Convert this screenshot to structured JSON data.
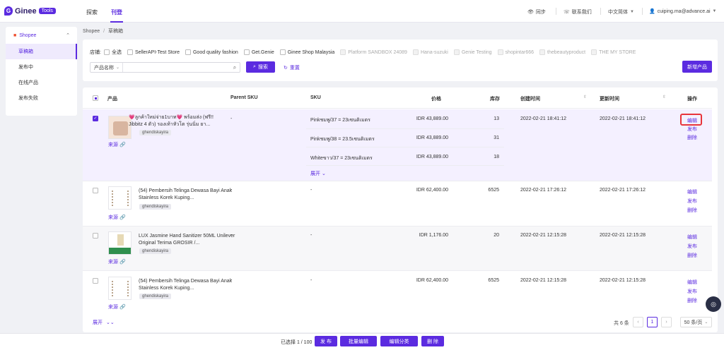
{
  "app": {
    "logo_letter": "G",
    "logo_name": "Ginee",
    "logo_badge": "Tools"
  },
  "nav": {
    "explore": "探索",
    "publish": "刊登"
  },
  "topbar": {
    "sync": "同步",
    "contact": "联系我们",
    "language": "中文简体",
    "user": "cuiping.ma@advance.ai"
  },
  "sidebar": {
    "platform": "Shopee",
    "items": [
      {
        "label": "草稿箱"
      },
      {
        "label": "发布中"
      },
      {
        "label": "在线产品"
      },
      {
        "label": "发布失败"
      }
    ]
  },
  "breadcrumb": {
    "root": "Shopee",
    "sep": "/",
    "current": "草稿箱"
  },
  "filter": {
    "store_label": "店铺:",
    "select_all": "全选",
    "stores": [
      {
        "name": "SellerAPI-Test Store",
        "disabled": false
      },
      {
        "name": "Good quality fashion",
        "disabled": false
      },
      {
        "name": "Get.Genie",
        "disabled": false
      },
      {
        "name": "Ginee Shop Malaysia",
        "disabled": false
      },
      {
        "name": "Platform SANDBOX 24089",
        "disabled": true
      },
      {
        "name": "Hana-suzuki",
        "disabled": true
      },
      {
        "name": "Genie Testing",
        "disabled": true
      },
      {
        "name": "shopintar666",
        "disabled": true
      },
      {
        "name": "thebeautyproduct",
        "disabled": true
      },
      {
        "name": "THE MY STORE",
        "disabled": true
      }
    ],
    "search_type": "产品名称",
    "search_placeholder": "",
    "search_button": "搜索",
    "reset": "重置",
    "add_product": "新增产品"
  },
  "table": {
    "headers": {
      "product": "产品",
      "parent_sku": "Parent SKU",
      "sku": "SKU",
      "price": "价格",
      "stock": "库存",
      "created": "创建时间",
      "updated": "更新时间",
      "actions": "操作"
    },
    "rows": [
      {
        "title": "💗ลูกค้าใหม่จ่าย1บาท💗 พร้อมส่ง (ฟรี!! Jibbitz 4 ตัว) รองเท้าหัวโต รุ่นนิ่ม ยา...",
        "store": "ghendiskayira",
        "source": "来源",
        "parent_sku": "-",
        "variants": [
          {
            "sku": "Pinkชมพู/37 = 23เซนติเมตร",
            "price": "IDR 43,889.00",
            "stock": "13"
          },
          {
            "sku": "Pinkชมพู/38 = 23.5เซนติเมตร",
            "price": "IDR 43,889.00",
            "stock": "31"
          },
          {
            "sku": "Whiteขาว/37 = 23เซนติเมตร",
            "price": "IDR 43,889.00",
            "stock": "18"
          }
        ],
        "expand": "展开",
        "created": "2022-02-21 18:41:12",
        "updated": "2022-02-21 18:41:12",
        "checked": true
      },
      {
        "title": "(54) Pembersih Telinga Dewasa Bayi Anak Stainless Korek Kuping...",
        "store": "ghendiskayira",
        "source": "来源",
        "parent_sku": "-",
        "sku": "-",
        "price": "IDR 62,400.00",
        "stock": "6525",
        "created": "2022-02-21 17:26:12",
        "updated": "2022-02-21 17:26:12",
        "checked": false
      },
      {
        "title": "LUX Jasmine Hand Sanitizer 50ML Unilever Original Terima GROSIR /...",
        "store": "ghendiskayira",
        "source": "来源",
        "parent_sku": "-",
        "sku": "-",
        "price": "IDR 1,176.00",
        "stock": "20",
        "created": "2022-02-21 12:15:28",
        "updated": "2022-02-21 12:15:28",
        "checked": false
      },
      {
        "title": "(54) Pembersih Telinga Dewasa Bayi Anak Stainless Korek Kuping...",
        "store": "ghendiskayira",
        "source": "来源",
        "parent_sku": "-",
        "sku": "-",
        "price": "IDR 62,400.00",
        "stock": "6525",
        "created": "2022-02-21 12:15:28",
        "updated": "2022-02-21 12:15:28",
        "checked": false
      }
    ],
    "actions": {
      "edit": "编辑",
      "publish": "发布",
      "delete": "删除"
    },
    "expand_all": "展开"
  },
  "pagination": {
    "total": "共 6 条",
    "current_page": "1",
    "page_size": "50 条/页"
  },
  "bottom": {
    "selected": "已选择 1 / 100",
    "publish": "发 布",
    "bulk_edit": "批量编辑",
    "edit_category": "编辑分类",
    "delete": "删 除"
  },
  "colors": {
    "primary": "#5b2be0",
    "highlight": "#e8343b",
    "selected_row": "#f4f0ff"
  }
}
